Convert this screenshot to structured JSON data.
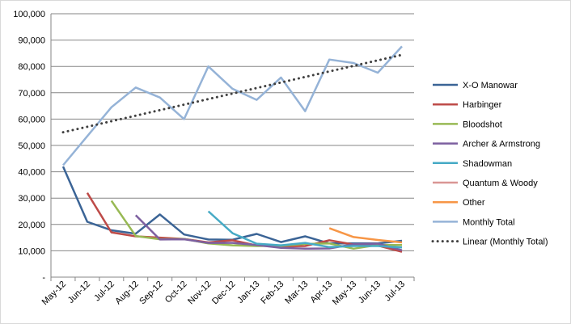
{
  "chart_data": {
    "type": "line",
    "title": "",
    "xlabel": "",
    "ylabel": "",
    "ylim": [
      0,
      100000
    ],
    "y_ticks": [
      0,
      10000,
      20000,
      30000,
      40000,
      50000,
      60000,
      70000,
      80000,
      90000,
      100000
    ],
    "y_tick_labels": [
      "-",
      "10,000",
      "20,000",
      "30,000",
      "40,000",
      "50,000",
      "60,000",
      "70,000",
      "80,000",
      "90,000",
      "100,000"
    ],
    "grid": "horizontal",
    "legend_position": "right",
    "categories": [
      "May-12",
      "Jun-12",
      "Jul-12",
      "Aug-12",
      "Sep-12",
      "Oct-12",
      "Nov-12",
      "Dec-12",
      "Jan-13",
      "Feb-13",
      "Mar-13",
      "Apr-13",
      "May-13",
      "Jun-13",
      "Jul-13"
    ],
    "series": [
      {
        "name": "X-O Manowar",
        "color": "#3b6496",
        "width": 2.5,
        "values": [
          42000,
          21000,
          17800,
          16500,
          23800,
          16200,
          14300,
          14200,
          16400,
          13300,
          15500,
          12800,
          12800,
          12800,
          13800
        ]
      },
      {
        "name": "Harbinger",
        "color": "#be4b48",
        "width": 2.5,
        "values": [
          null,
          32000,
          17000,
          15500,
          15000,
          14500,
          13200,
          14000,
          12000,
          11700,
          11800,
          14000,
          12400,
          12000,
          9600
        ]
      },
      {
        "name": "Bloodshot",
        "color": "#98b954",
        "width": 2.5,
        "values": [
          null,
          null,
          29000,
          15600,
          14400,
          14500,
          12800,
          12100,
          11800,
          11900,
          12600,
          12800,
          10800,
          12200,
          12200
        ]
      },
      {
        "name": "Archer & Armstrong",
        "color": "#7d60a0",
        "width": 2.5,
        "values": [
          null,
          null,
          null,
          23500,
          14300,
          14400,
          13000,
          13000,
          12200,
          11100,
          10800,
          10900,
          12500,
          12700,
          10200
        ]
      },
      {
        "name": "Shadowman",
        "color": "#46aac5",
        "width": 2.5,
        "values": [
          null,
          null,
          null,
          null,
          null,
          null,
          25000,
          16700,
          12700,
          12100,
          13000,
          11400,
          11800,
          11800,
          11300
        ]
      },
      {
        "name": "Quantum & Woody",
        "color": "#d99694",
        "width": 2.5,
        "values": [
          null,
          null,
          null,
          null,
          null,
          null,
          null,
          null,
          null,
          null,
          null,
          null,
          null,
          null,
          null
        ]
      },
      {
        "name": "Other",
        "color": "#f79646",
        "width": 2.5,
        "values": [
          null,
          null,
          null,
          null,
          null,
          null,
          null,
          null,
          null,
          null,
          null,
          18600,
          15200,
          14100,
          13200
        ]
      },
      {
        "name": "Monthly Total",
        "color": "#95b3d7",
        "width": 2.5,
        "values": [
          42500,
          53500,
          64500,
          72000,
          68200,
          60000,
          80000,
          71500,
          67300,
          75800,
          63000,
          82600,
          81300,
          77600,
          87600
        ]
      },
      {
        "name": "Linear (Monthly Total)",
        "color": "#404040",
        "width": 3,
        "dotted": true,
        "values": [
          55000,
          57100,
          59200,
          61300,
          63400,
          65500,
          67600,
          69700,
          71800,
          73900,
          76000,
          78100,
          80200,
          82300,
          84400
        ]
      }
    ]
  }
}
